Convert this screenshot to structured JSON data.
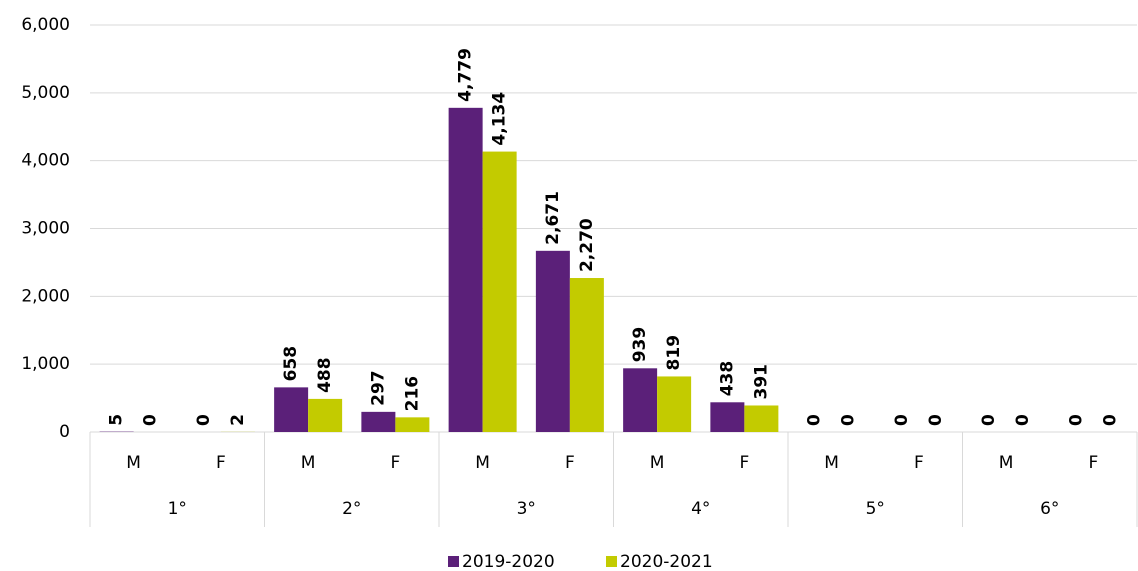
{
  "chart_data": {
    "type": "bar",
    "categories": [
      "M",
      "F",
      "M",
      "F",
      "M",
      "F",
      "M",
      "F",
      "M",
      "F",
      "M",
      "F"
    ],
    "groups": [
      "1°",
      "2°",
      "3°",
      "4°",
      "5°",
      "6°"
    ],
    "series": [
      {
        "name": "2019-2020",
        "color": "#5b2079",
        "values": [
          5,
          0,
          658,
          297,
          4779,
          2671,
          939,
          438,
          0,
          0,
          0,
          0
        ],
        "value_labels": [
          "5",
          "0",
          "658",
          "297",
          "4,779",
          "2,671",
          "939",
          "438",
          "0",
          "0",
          "0",
          "0"
        ]
      },
      {
        "name": "2020-2021",
        "color": "#c3cb00",
        "values": [
          0,
          2,
          488,
          216,
          4134,
          2270,
          819,
          391,
          0,
          0,
          0,
          0
        ],
        "value_labels": [
          "0",
          "2",
          "488",
          "216",
          "4,134",
          "2,270",
          "819",
          "391",
          "0",
          "0",
          "0",
          "0"
        ]
      }
    ],
    "ylim": [
      0,
      6000
    ],
    "yticks": [
      0,
      {
        "value": 1000,
        "label": "1,000"
      },
      {
        "value": 2000,
        "label": "2,000"
      },
      {
        "value": 3000,
        "label": "3,000"
      },
      {
        "value": 4000,
        "label": "4,000"
      },
      {
        "value": 5000,
        "label": "5,000"
      },
      {
        "value": 6000,
        "label": "6,000"
      }
    ],
    "grid": true,
    "legend": "bottom"
  }
}
